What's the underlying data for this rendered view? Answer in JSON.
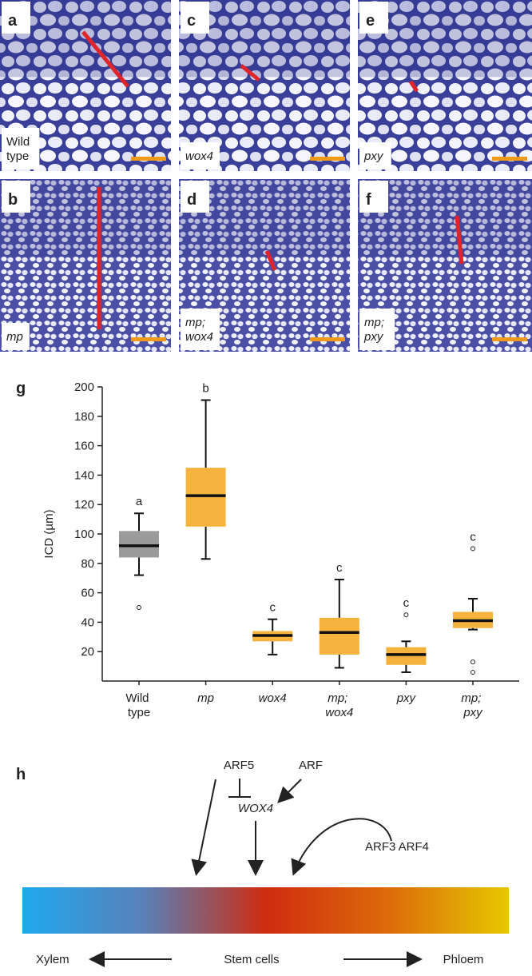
{
  "panels": [
    {
      "letter": "a",
      "label": "Wild type"
    },
    {
      "letter": "b",
      "label": "mp"
    },
    {
      "letter": "c",
      "label": "wox4"
    },
    {
      "letter": "d",
      "label": "mp; wox4"
    },
    {
      "letter": "e",
      "label": "pxy"
    },
    {
      "letter": "f",
      "label": "mp; pxy"
    }
  ],
  "chart_data": {
    "type": "box",
    "panel_letter": "g",
    "ylabel": "ICD (µm)",
    "categories": [
      "Wild type",
      "mp",
      "wox4",
      "mp; wox4",
      "pxy",
      "mp; pxy"
    ],
    "colors": [
      "#9b9b9b",
      "#f5b23c",
      "#f5b23c",
      "#f5b23c",
      "#f5b23c",
      "#f5b23c"
    ],
    "group_labels": [
      "a",
      "b",
      "c",
      "c",
      "c",
      "c"
    ],
    "boxes": [
      {
        "min": 72,
        "q1": 84,
        "median": 92,
        "q3": 102,
        "max": 114,
        "outliers": [
          50
        ]
      },
      {
        "min": 83,
        "q1": 105,
        "median": 126,
        "q3": 145,
        "max": 191,
        "outliers": []
      },
      {
        "min": 18,
        "q1": 27,
        "median": 31,
        "q3": 34,
        "max": 42,
        "outliers": []
      },
      {
        "min": 9,
        "q1": 18,
        "median": 33,
        "q3": 43,
        "max": 69,
        "outliers": []
      },
      {
        "min": 6,
        "q1": 11,
        "median": 18,
        "q3": 23,
        "max": 27,
        "outliers": [
          45
        ]
      },
      {
        "min": 35,
        "q1": 36,
        "median": 41,
        "q3": 47,
        "max": 56,
        "outliers": [
          90,
          13,
          6
        ]
      }
    ],
    "ylim": [
      0,
      200
    ],
    "yticks": [
      20,
      40,
      60,
      80,
      100,
      120,
      140,
      160,
      180,
      200
    ]
  },
  "diagram": {
    "letter": "h",
    "arf5": "ARF5",
    "arf": "ARF",
    "wox4": "WOX4",
    "arf34": "ARF3 ARF4",
    "xylem": "Xylem",
    "stem": "Stem cells",
    "phloem": "Phloem"
  }
}
